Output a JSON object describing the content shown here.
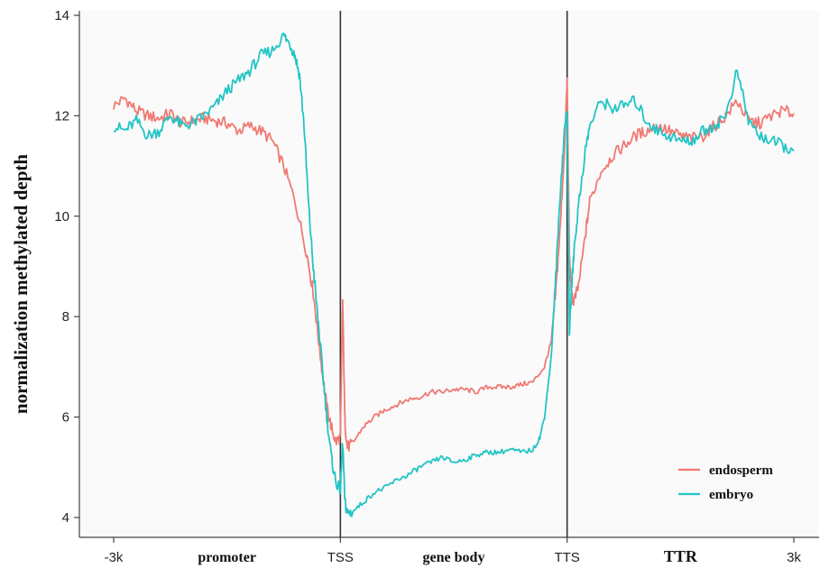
{
  "chart_data": {
    "type": "line",
    "title": "",
    "ylabel": "normalization methylated depth",
    "ylim": [
      3.8,
      14.2
    ],
    "yticks": [
      4,
      6,
      8,
      10,
      12,
      14
    ],
    "xlim": [
      0,
      3
    ],
    "xticks": [
      {
        "x": 0,
        "label": "-3k"
      },
      {
        "x": 1,
        "label": "TSS"
      },
      {
        "x": 2,
        "label": "TTS"
      },
      {
        "x": 3,
        "label": "3k"
      }
    ],
    "regions": [
      {
        "x": 0.5,
        "label": "promoter"
      },
      {
        "x": 1.5,
        "label": "gene body"
      },
      {
        "x": 2.5,
        "label": "TTR"
      }
    ],
    "vlines": [
      1,
      2
    ],
    "grid": false,
    "legend_position": "bottom-right",
    "series": [
      {
        "name": "endosperm",
        "color": "#f07a72",
        "x": [
          0.0,
          0.05,
          0.1,
          0.15,
          0.2,
          0.25,
          0.3,
          0.35,
          0.4,
          0.45,
          0.5,
          0.55,
          0.6,
          0.65,
          0.7,
          0.75,
          0.8,
          0.85,
          0.88,
          0.9,
          0.92,
          0.94,
          0.96,
          0.98,
          1.0,
          1.01,
          1.02,
          1.03,
          1.05,
          1.1,
          1.15,
          1.2,
          1.25,
          1.3,
          1.35,
          1.4,
          1.45,
          1.5,
          1.55,
          1.6,
          1.65,
          1.7,
          1.75,
          1.8,
          1.85,
          1.9,
          1.93,
          1.95,
          1.97,
          1.99,
          2.0,
          2.01,
          2.02,
          2.03,
          2.05,
          2.08,
          2.1,
          2.15,
          2.2,
          2.25,
          2.3,
          2.35,
          2.4,
          2.45,
          2.5,
          2.55,
          2.6,
          2.65,
          2.7,
          2.75,
          2.8,
          2.85,
          2.9,
          2.95,
          3.0
        ],
        "y": [
          12.2,
          12.35,
          12.1,
          12.0,
          11.95,
          12.05,
          11.85,
          11.9,
          11.95,
          11.9,
          11.85,
          11.7,
          11.8,
          11.7,
          11.5,
          11.0,
          10.3,
          9.3,
          8.5,
          7.7,
          6.9,
          6.2,
          5.8,
          5.5,
          5.6,
          8.3,
          5.9,
          5.4,
          5.45,
          5.8,
          6.0,
          6.15,
          6.25,
          6.35,
          6.4,
          6.5,
          6.5,
          6.55,
          6.55,
          6.5,
          6.6,
          6.6,
          6.6,
          6.65,
          6.7,
          7.0,
          7.5,
          8.5,
          9.8,
          11.5,
          12.7,
          9.2,
          8.4,
          8.3,
          8.6,
          9.6,
          10.3,
          10.9,
          11.2,
          11.4,
          11.6,
          11.7,
          11.8,
          11.7,
          11.6,
          11.55,
          11.6,
          11.8,
          12.0,
          12.3,
          11.9,
          11.85,
          12.0,
          12.1,
          12.05
        ]
      },
      {
        "name": "embryo",
        "color": "#22c4c4",
        "x": [
          0.0,
          0.05,
          0.1,
          0.15,
          0.2,
          0.25,
          0.3,
          0.35,
          0.4,
          0.45,
          0.5,
          0.55,
          0.6,
          0.65,
          0.7,
          0.75,
          0.78,
          0.8,
          0.82,
          0.84,
          0.86,
          0.88,
          0.9,
          0.92,
          0.94,
          0.96,
          0.98,
          1.0,
          1.01,
          1.02,
          1.03,
          1.05,
          1.1,
          1.15,
          1.2,
          1.25,
          1.3,
          1.35,
          1.4,
          1.45,
          1.5,
          1.55,
          1.6,
          1.65,
          1.7,
          1.75,
          1.8,
          1.85,
          1.88,
          1.9,
          1.93,
          1.95,
          1.97,
          1.99,
          2.0,
          2.01,
          2.02,
          2.03,
          2.05,
          2.08,
          2.1,
          2.15,
          2.2,
          2.25,
          2.3,
          2.35,
          2.4,
          2.45,
          2.5,
          2.55,
          2.6,
          2.65,
          2.7,
          2.75,
          2.8,
          2.85,
          2.9,
          2.95,
          3.0
        ],
        "y": [
          11.8,
          11.7,
          11.9,
          11.6,
          11.7,
          12.0,
          11.8,
          11.85,
          12.0,
          12.2,
          12.5,
          12.7,
          12.9,
          13.2,
          13.3,
          13.6,
          13.4,
          13.2,
          12.8,
          11.8,
          10.2,
          9.0,
          8.0,
          7.0,
          6.0,
          5.2,
          4.7,
          4.55,
          5.5,
          4.3,
          4.1,
          4.1,
          4.3,
          4.5,
          4.6,
          4.75,
          4.85,
          5.0,
          5.1,
          5.2,
          5.1,
          5.15,
          5.25,
          5.3,
          5.3,
          5.35,
          5.3,
          5.35,
          5.6,
          6.0,
          7.2,
          8.8,
          10.5,
          11.8,
          12.1,
          7.7,
          8.6,
          9.3,
          10.2,
          11.3,
          11.8,
          12.3,
          12.15,
          12.2,
          12.3,
          11.9,
          11.7,
          11.6,
          11.5,
          11.5,
          11.7,
          11.8,
          12.0,
          12.9,
          11.9,
          11.6,
          11.5,
          11.4,
          11.3
        ]
      }
    ]
  }
}
